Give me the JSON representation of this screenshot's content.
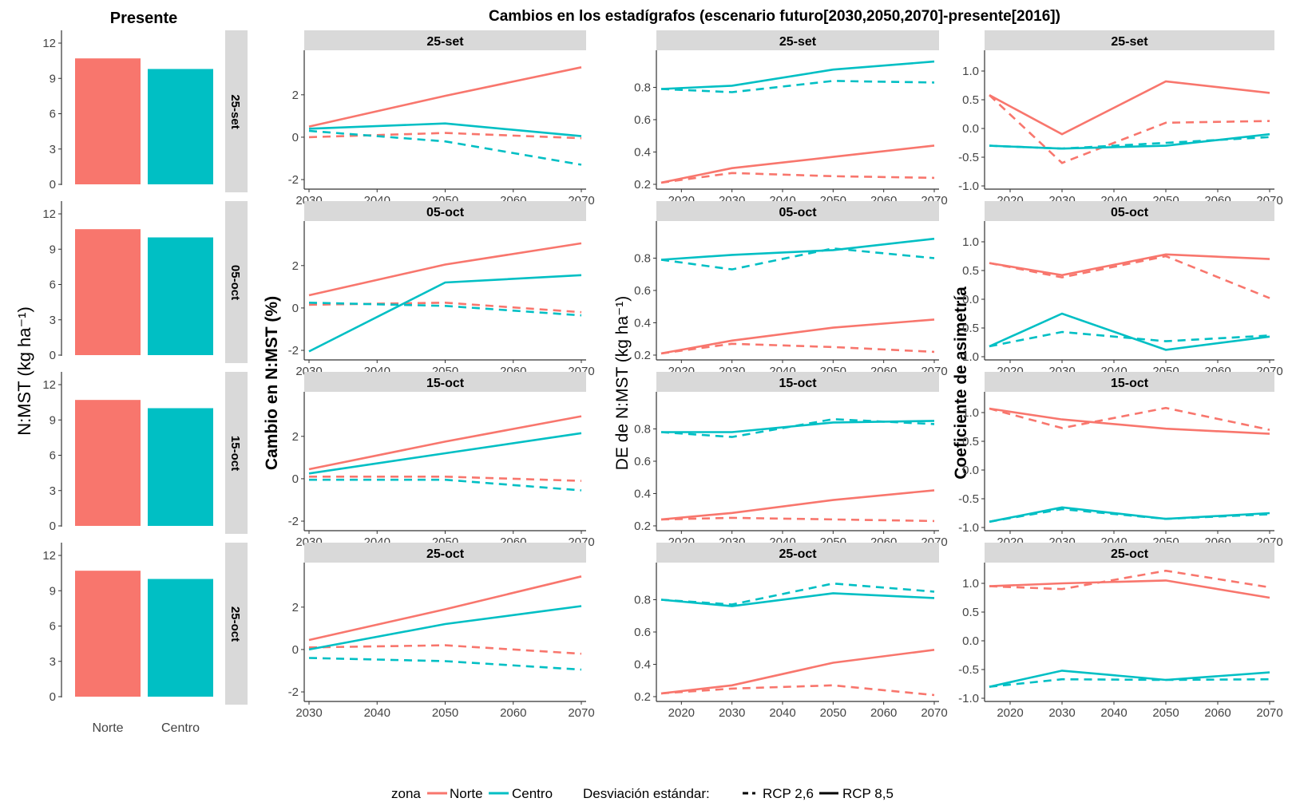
{
  "present_title": "Presente",
  "main_title": "Cambios en los estadígrafos (escenario futuro[2030,2050,2070]-presente[2016])",
  "present_ylabel": "N:MST (kg ha⁻¹)",
  "col_ylabels": [
    "Cambio en N:MST (%)",
    "DE de N:MST (kg ha⁻¹)",
    "Coeficiente de asimetría"
  ],
  "facets": [
    "25-set",
    "05-oct",
    "15-oct",
    "25-oct"
  ],
  "legend": {
    "zona_title": "zona",
    "zona_items": [
      "Norte",
      "Centro"
    ],
    "lt_title": "Desviación estándar:",
    "lt_items": [
      "RCP 2,6",
      "RCP 8,5"
    ]
  },
  "colors": {
    "norte": "#F8766D",
    "centro": "#00BFC4",
    "strip": "#D9D9D9",
    "axis": "#333333"
  },
  "chart_data": [
    {
      "id": "presente",
      "type": "bar",
      "title": "Presente",
      "ylabel": "N:MST (kg ha⁻¹)",
      "categories": [
        "Norte",
        "Centro"
      ],
      "ylim": [
        0,
        12
      ],
      "yticks": [
        0,
        3,
        6,
        9,
        12
      ],
      "facets": [
        {
          "facet": "25-set",
          "values": [
            10.7,
            9.8
          ]
        },
        {
          "facet": "05-oct",
          "values": [
            10.7,
            10.0
          ]
        },
        {
          "facet": "15-oct",
          "values": [
            10.7,
            10.0
          ]
        },
        {
          "facet": "25-oct",
          "values": [
            10.7,
            10.0
          ]
        }
      ]
    },
    {
      "id": "cambio",
      "type": "line",
      "ylabel": "Cambio en N:MST (%)",
      "x": [
        2030,
        2050,
        2070
      ],
      "xlim": [
        2030,
        2070
      ],
      "xticks": [
        2030,
        2040,
        2050,
        2060,
        2070
      ],
      "ylim": [
        -2.3,
        3.8
      ],
      "yticks": [
        -2,
        0,
        2
      ],
      "facets": [
        {
          "facet": "25-set",
          "series": [
            {
              "zona": "Norte",
              "rcp": "RCP 8,5",
              "values": [
                0.5,
                1.95,
                3.3
              ]
            },
            {
              "zona": "Norte",
              "rcp": "RCP 2,6",
              "values": [
                0.0,
                0.2,
                -0.05
              ]
            },
            {
              "zona": "Centro",
              "rcp": "RCP 8,5",
              "values": [
                0.4,
                0.65,
                0.05
              ]
            },
            {
              "zona": "Centro",
              "rcp": "RCP 2,6",
              "values": [
                0.3,
                -0.2,
                -1.3
              ]
            }
          ]
        },
        {
          "facet": "05-oct",
          "series": [
            {
              "zona": "Norte",
              "rcp": "RCP 8,5",
              "values": [
                0.6,
                2.05,
                3.05
              ]
            },
            {
              "zona": "Norte",
              "rcp": "RCP 2,6",
              "values": [
                0.15,
                0.25,
                -0.2
              ]
            },
            {
              "zona": "Centro",
              "rcp": "RCP 8,5",
              "values": [
                -2.05,
                1.2,
                1.55
              ]
            },
            {
              "zona": "Centro",
              "rcp": "RCP 2,6",
              "values": [
                0.25,
                0.1,
                -0.35
              ]
            }
          ]
        },
        {
          "facet": "15-oct",
          "series": [
            {
              "zona": "Norte",
              "rcp": "RCP 8,5",
              "values": [
                0.45,
                1.75,
                2.95
              ]
            },
            {
              "zona": "Norte",
              "rcp": "RCP 2,6",
              "values": [
                0.1,
                0.1,
                -0.1
              ]
            },
            {
              "zona": "Centro",
              "rcp": "RCP 8,5",
              "values": [
                0.25,
                1.2,
                2.15
              ]
            },
            {
              "zona": "Centro",
              "rcp": "RCP 2,6",
              "values": [
                -0.05,
                -0.05,
                -0.55
              ]
            }
          ]
        },
        {
          "facet": "25-oct",
          "series": [
            {
              "zona": "Norte",
              "rcp": "RCP 8,5",
              "values": [
                0.45,
                1.9,
                3.45
              ]
            },
            {
              "zona": "Norte",
              "rcp": "RCP 2,6",
              "values": [
                0.1,
                0.2,
                -0.2
              ]
            },
            {
              "zona": "Centro",
              "rcp": "RCP 8,5",
              "values": [
                0.0,
                1.2,
                2.05
              ]
            },
            {
              "zona": "Centro",
              "rcp": "RCP 2,6",
              "values": [
                -0.4,
                -0.55,
                -0.95
              ]
            }
          ]
        }
      ]
    },
    {
      "id": "de",
      "type": "line",
      "ylabel": "DE de N:MST (kg ha⁻¹)",
      "x": [
        2016,
        2030,
        2050,
        2070
      ],
      "xlim": [
        2016,
        2070
      ],
      "xticks": [
        2020,
        2030,
        2040,
        2050,
        2060,
        2070
      ],
      "ylim": [
        0.19,
        0.99
      ],
      "yticks": [
        0.2,
        0.4,
        0.6,
        0.8
      ],
      "facets": [
        {
          "facet": "25-set",
          "series": [
            {
              "zona": "Norte",
              "rcp": "RCP 8,5",
              "values": [
                0.21,
                0.3,
                0.37,
                0.44
              ]
            },
            {
              "zona": "Norte",
              "rcp": "RCP 2,6",
              "values": [
                0.21,
                0.27,
                0.25,
                0.24
              ]
            },
            {
              "zona": "Centro",
              "rcp": "RCP 8,5",
              "values": [
                0.79,
                0.81,
                0.91,
                0.96
              ]
            },
            {
              "zona": "Centro",
              "rcp": "RCP 2,6",
              "values": [
                0.79,
                0.77,
                0.84,
                0.83
              ]
            }
          ]
        },
        {
          "facet": "05-oct",
          "series": [
            {
              "zona": "Norte",
              "rcp": "RCP 8,5",
              "values": [
                0.21,
                0.29,
                0.37,
                0.42
              ]
            },
            {
              "zona": "Norte",
              "rcp": "RCP 2,6",
              "values": [
                0.21,
                0.27,
                0.25,
                0.22
              ]
            },
            {
              "zona": "Centro",
              "rcp": "RCP 8,5",
              "values": [
                0.79,
                0.82,
                0.85,
                0.92
              ]
            },
            {
              "zona": "Centro",
              "rcp": "RCP 2,6",
              "values": [
                0.79,
                0.73,
                0.86,
                0.8
              ]
            }
          ]
        },
        {
          "facet": "15-oct",
          "series": [
            {
              "zona": "Norte",
              "rcp": "RCP 8,5",
              "values": [
                0.24,
                0.28,
                0.36,
                0.42
              ]
            },
            {
              "zona": "Norte",
              "rcp": "RCP 2,6",
              "values": [
                0.24,
                0.25,
                0.24,
                0.23
              ]
            },
            {
              "zona": "Centro",
              "rcp": "RCP 8,5",
              "values": [
                0.78,
                0.78,
                0.84,
                0.85
              ]
            },
            {
              "zona": "Centro",
              "rcp": "RCP 2,6",
              "values": [
                0.78,
                0.75,
                0.86,
                0.83
              ]
            }
          ]
        },
        {
          "facet": "25-oct",
          "series": [
            {
              "zona": "Norte",
              "rcp": "RCP 8,5",
              "values": [
                0.22,
                0.27,
                0.41,
                0.49
              ]
            },
            {
              "zona": "Norte",
              "rcp": "RCP 2,6",
              "values": [
                0.22,
                0.25,
                0.27,
                0.21
              ]
            },
            {
              "zona": "Centro",
              "rcp": "RCP 8,5",
              "values": [
                0.8,
                0.76,
                0.84,
                0.81
              ]
            },
            {
              "zona": "Centro",
              "rcp": "RCP 2,6",
              "values": [
                0.8,
                0.77,
                0.9,
                0.85
              ]
            }
          ]
        }
      ]
    },
    {
      "id": "asimetria",
      "type": "line",
      "ylabel": "Coeficiente de asimetría",
      "x": [
        2016,
        2030,
        2050,
        2070
      ],
      "xlim": [
        2016,
        2070
      ],
      "xticks": [
        2020,
        2030,
        2040,
        2050,
        2060,
        2070
      ],
      "ylim": [
        -1.0,
        1.25
      ],
      "yticks": [
        -1.0,
        -0.5,
        0.0,
        0.5,
        1.0
      ],
      "facets": [
        {
          "facet": "25-set",
          "series": [
            {
              "zona": "Norte",
              "rcp": "RCP 8,5",
              "values": [
                0.58,
                -0.1,
                0.82,
                0.62
              ]
            },
            {
              "zona": "Norte",
              "rcp": "RCP 2,6",
              "values": [
                0.58,
                -0.6,
                0.1,
                0.13
              ]
            },
            {
              "zona": "Centro",
              "rcp": "RCP 8,5",
              "values": [
                -0.3,
                -0.35,
                -0.3,
                -0.1
              ]
            },
            {
              "zona": "Centro",
              "rcp": "RCP 2,6",
              "values": [
                -0.3,
                -0.35,
                -0.25,
                -0.15
              ]
            }
          ]
        },
        {
          "facet": "05-oct",
          "series": [
            {
              "zona": "Norte",
              "rcp": "RCP 8,5",
              "values": [
                0.63,
                0.42,
                0.78,
                0.7
              ]
            },
            {
              "zona": "Norte",
              "rcp": "RCP 2,6",
              "values": [
                0.63,
                0.38,
                0.75,
                0.02
              ]
            },
            {
              "zona": "Centro",
              "rcp": "RCP 8,5",
              "values": [
                -0.82,
                -0.25,
                -0.88,
                -0.65
              ]
            },
            {
              "zona": "Centro",
              "rcp": "RCP 2,6",
              "values": [
                -0.82,
                -0.57,
                -0.73,
                -0.63
              ]
            }
          ]
        },
        {
          "facet": "15-oct",
          "series": [
            {
              "zona": "Norte",
              "rcp": "RCP 8,5",
              "values": [
                1.07,
                0.88,
                0.72,
                0.63
              ]
            },
            {
              "zona": "Norte",
              "rcp": "RCP 2,6",
              "values": [
                1.07,
                0.73,
                1.08,
                0.7
              ]
            },
            {
              "zona": "Centro",
              "rcp": "RCP 8,5",
              "values": [
                -0.9,
                -0.65,
                -0.85,
                -0.75
              ]
            },
            {
              "zona": "Centro",
              "rcp": "RCP 2,6",
              "values": [
                -0.9,
                -0.68,
                -0.85,
                -0.77
              ]
            }
          ]
        },
        {
          "facet": "25-oct",
          "series": [
            {
              "zona": "Norte",
              "rcp": "RCP 8,5",
              "values": [
                0.95,
                1.0,
                1.05,
                0.75
              ]
            },
            {
              "zona": "Norte",
              "rcp": "RCP 2,6",
              "values": [
                0.95,
                0.9,
                1.22,
                0.93
              ]
            },
            {
              "zona": "Centro",
              "rcp": "RCP 8,5",
              "values": [
                -0.8,
                -0.52,
                -0.68,
                -0.55
              ]
            },
            {
              "zona": "Centro",
              "rcp": "RCP 2,6",
              "values": [
                -0.8,
                -0.67,
                -0.68,
                -0.67
              ]
            }
          ]
        }
      ]
    }
  ]
}
